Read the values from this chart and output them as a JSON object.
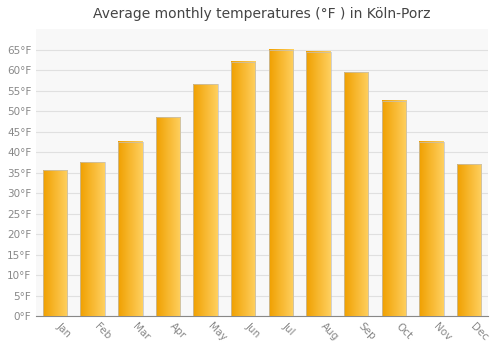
{
  "title": "Average monthly temperatures (°F ) in Köln-Porz",
  "months": [
    "Jan",
    "Feb",
    "Mar",
    "Apr",
    "May",
    "Jun",
    "Jul",
    "Aug",
    "Sep",
    "Oct",
    "Nov",
    "Dec"
  ],
  "values": [
    35.5,
    37.5,
    42.5,
    48.5,
    56.5,
    62.0,
    65.0,
    64.5,
    59.5,
    52.5,
    42.5,
    37.0
  ],
  "bar_color_left": "#F0A000",
  "bar_color_right": "#FFD060",
  "background_color": "#FFFFFF",
  "plot_bg_color": "#F8F8F8",
  "ylim": [
    0,
    70
  ],
  "yticks": [
    0,
    5,
    10,
    15,
    20,
    25,
    30,
    35,
    40,
    45,
    50,
    55,
    60,
    65
  ],
  "ytick_labels": [
    "0°F",
    "5°F",
    "10°F",
    "15°F",
    "20°F",
    "25°F",
    "30°F",
    "35°F",
    "40°F",
    "45°F",
    "50°F",
    "55°F",
    "60°F",
    "65°F"
  ],
  "title_fontsize": 10,
  "tick_fontsize": 7.5,
  "grid_color": "#E0E0E0",
  "bar_width": 0.65,
  "bar_edge_color": "#C0C0C0",
  "bar_edge_width": 0.5
}
